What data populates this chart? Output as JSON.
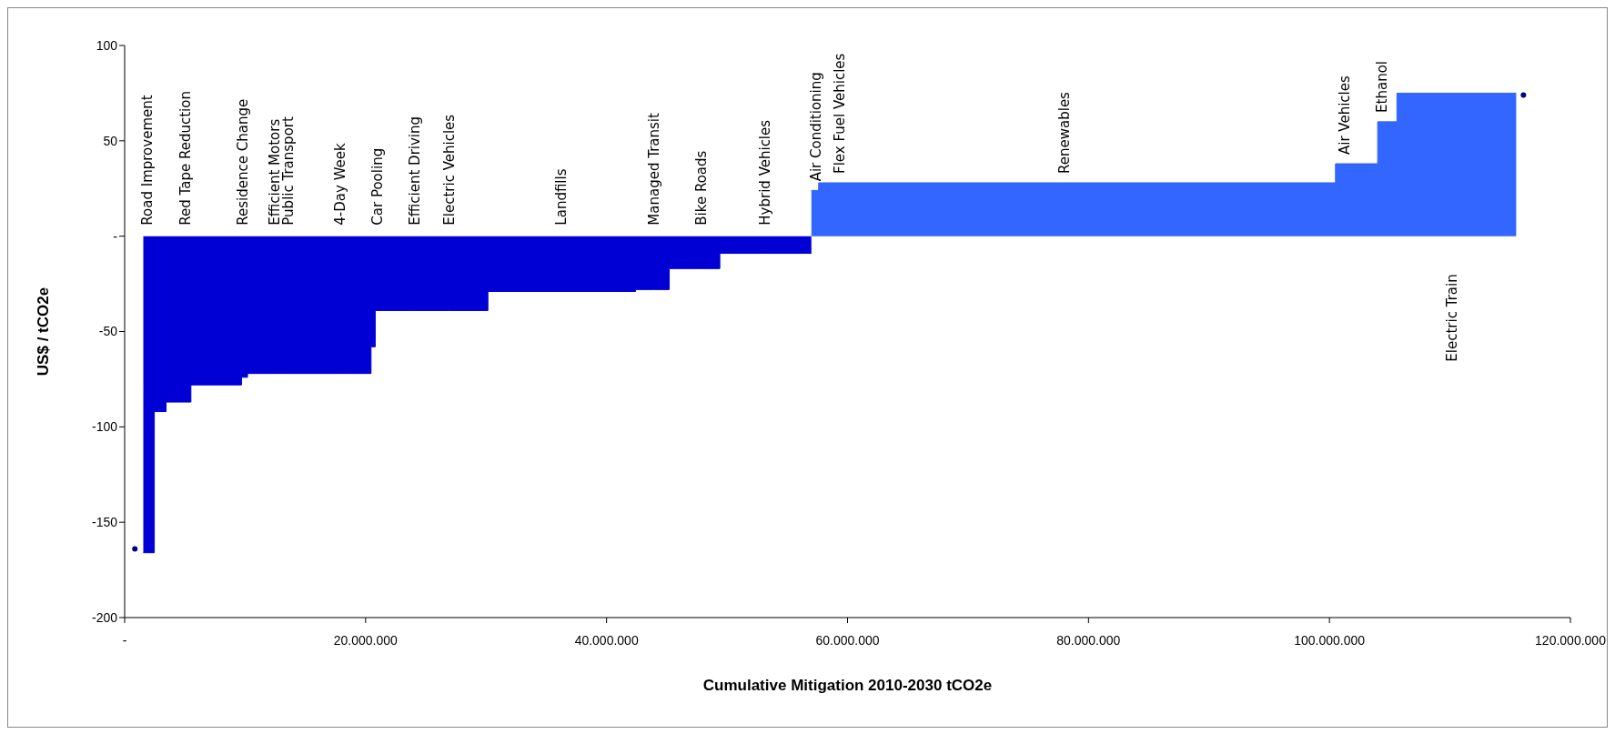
{
  "chart_data": {
    "type": "area",
    "xlabel": "Cumulative Mitigation 2010-2030 tCO2e",
    "ylabel": "US$ / tCO2e",
    "xlim": [
      0,
      120000000
    ],
    "xticks": [
      {
        "value": 0,
        "label": "-"
      },
      {
        "value": 20000000,
        "label": "20.000.000"
      },
      {
        "value": 40000000,
        "label": "40.000.000"
      },
      {
        "value": 60000000,
        "label": "60.000.000"
      },
      {
        "value": 80000000,
        "label": "80.000.000"
      },
      {
        "value": 100000000,
        "label": "100.000.000"
      },
      {
        "value": 120000000,
        "label": "120.000.000"
      }
    ],
    "ylim": [
      -200,
      100
    ],
    "yticks": [
      100,
      50,
      {
        "value": 0,
        "label": "-"
      },
      -50,
      -100,
      -150,
      -200
    ],
    "series": [
      {
        "color": "#0000d4",
        "x": [
          1550000,
          1850000,
          2460000,
          2460000,
          3440000,
          3440000,
          4950000,
          5500000,
          5500000,
          9700000,
          9700000,
          9750000,
          10200000,
          10200000,
          12400000,
          13500000,
          17800000,
          20450000,
          20450000,
          20800000,
          20800000,
          20900000,
          24000000,
          26900000,
          30150000,
          30150000,
          36200000,
          42400000,
          42400000,
          43900000,
          45200000,
          45200000,
          47800000,
          49400000,
          49400000,
          53100000,
          57000000
        ],
        "values": [
          -166,
          -166,
          -166,
          -92,
          -92,
          -87,
          -87,
          -87,
          -78,
          -78,
          -74,
          -74,
          -74,
          -72,
          -72,
          -72,
          -72,
          -72,
          -58,
          -58,
          -39,
          -39,
          -39,
          -39,
          -39,
          -29,
          -29,
          -29,
          -28,
          -28,
          -28,
          -17,
          -17,
          -17,
          -9,
          -9,
          -9
        ]
      },
      {
        "color": "#3366ff",
        "x": [
          57000000,
          57300000,
          57600000,
          57600000,
          59300000,
          77900000,
          100500000,
          100500000,
          101200000,
          104000000,
          104000000,
          104300000,
          105600000,
          105600000,
          110100000,
          115500000
        ],
        "values": [
          24,
          24,
          24,
          28,
          28,
          28,
          28,
          38,
          38,
          38,
          60,
          60,
          60,
          75,
          75,
          75
        ]
      },
      {
        "type": "scatter",
        "color": "#000080",
        "x": [
          850000,
          116100000
        ],
        "values": [
          -164,
          74
        ]
      }
    ],
    "annotations": [
      {
        "text": "Road Improvement",
        "x": 1850000,
        "y": 0
      },
      {
        "text": "Red Tape Reduction",
        "x": 4950000,
        "y": 0
      },
      {
        "text": "Residence Change",
        "x": 9750000,
        "y": 0
      },
      {
        "text": "Efficient Motors",
        "x": 12400000,
        "y": 0
      },
      {
        "text": "Public Transport",
        "x": 13500000,
        "y": 0
      },
      {
        "text": "4-Day Week",
        "x": 17800000,
        "y": 0
      },
      {
        "text": "Car Pooling",
        "x": 20900000,
        "y": 0
      },
      {
        "text": "Efficient Driving",
        "x": 24000000,
        "y": 0
      },
      {
        "text": "Electric Vehicles",
        "x": 26900000,
        "y": 0
      },
      {
        "text": "Landfills",
        "x": 36200000,
        "y": 0
      },
      {
        "text": "Managed Transit",
        "x": 43900000,
        "y": 0
      },
      {
        "text": "Bike Roads",
        "x": 47800000,
        "y": 0
      },
      {
        "text": "Hybrid Vehicles",
        "x": 53100000,
        "y": 0
      },
      {
        "text": "Air Conditioning",
        "x": 57300000,
        "y": 24
      },
      {
        "text": "Flex Fuel Vehicles",
        "x": 59300000,
        "y": 28
      },
      {
        "text": "Renewables",
        "x": 77900000,
        "y": 28
      },
      {
        "text": "Air Vehicles",
        "x": 101200000,
        "y": 38
      },
      {
        "text": "Ethanol",
        "x": 104300000,
        "y": 60
      },
      {
        "text": "Electric Train",
        "x": 110100000,
        "y": 0
      }
    ]
  }
}
